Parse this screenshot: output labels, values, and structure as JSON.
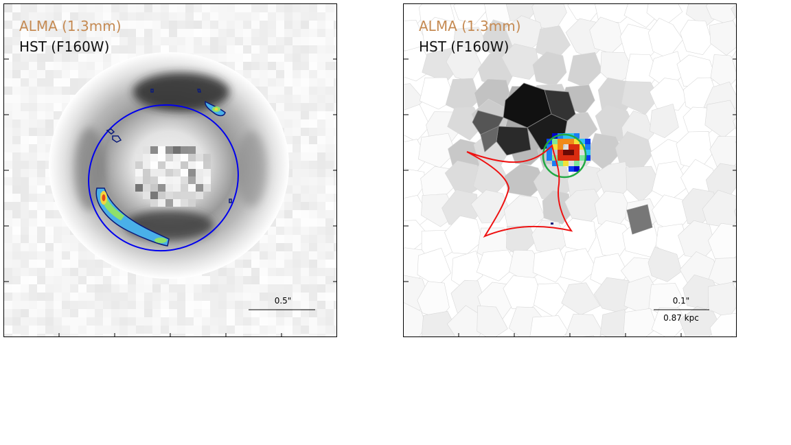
{
  "panels": [
    {
      "alma_label": "ALMA (1.3mm)",
      "hst_label": "HST (F160W)",
      "scale_label": "0.5\""
    },
    {
      "alma_label": "ALMA (1.3mm)",
      "hst_label": "HST (F160W)",
      "scale_label": "0.1\"",
      "scale_sublabel": "0.87 kpc"
    }
  ],
  "colors": {
    "alma_label": "#c58a52",
    "ring_contour": "#0000ee",
    "caustic": "#ee1111",
    "source_circle": "#22aa44"
  }
}
